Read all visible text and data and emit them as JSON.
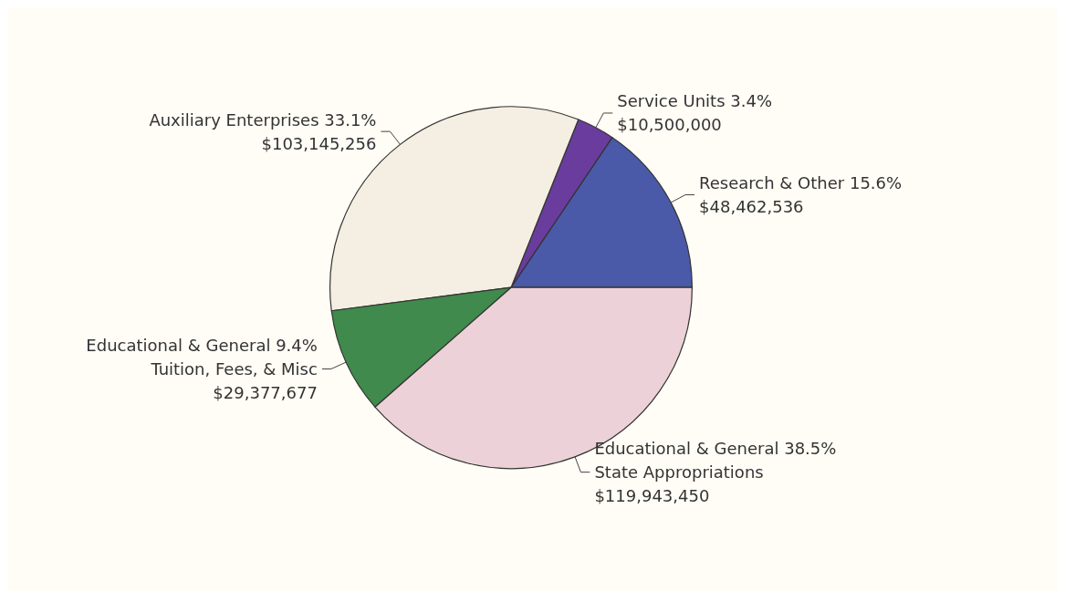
{
  "chart_data": {
    "type": "pie",
    "categories": [
      "Research & Other 15.6%",
      "Service Units 3.4%",
      "Auxiliary Enterprises 33.1%",
      "Educational & General 9.4%\nTuition, Fees, & Misc",
      "Educational & General 38.5%\nState Appropriations"
    ],
    "values": [
      48462536,
      10500000,
      103145256,
      29377677,
      119943450
    ],
    "value_labels": [
      "$48,462,536",
      "$10,500,000",
      "$103,145,256",
      "$29,377,677",
      "$119,943,450"
    ],
    "colors": [
      "#4a5aa8",
      "#6a3c9e",
      "#f4efe2",
      "#3f8a4c",
      "#ecd2d8"
    ],
    "legend": false
  }
}
